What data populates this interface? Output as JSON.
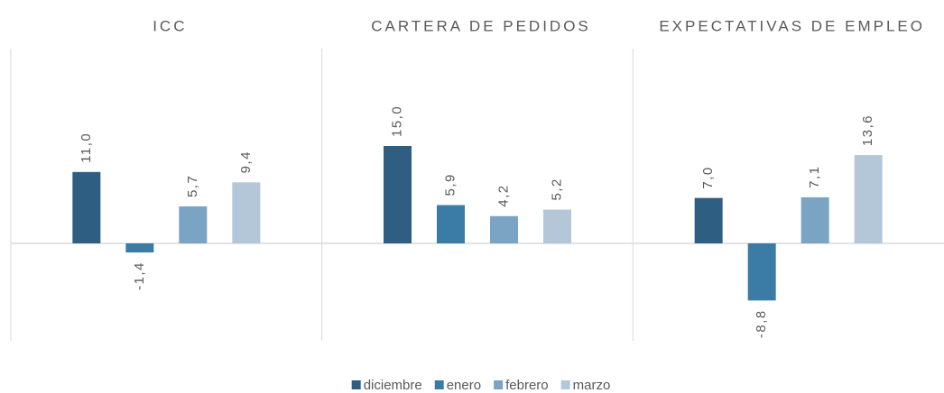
{
  "chart_data": {
    "type": "bar",
    "categories": [
      "ICC",
      "CARTERA DE PEDIDOS",
      "EXPECTATIVAS DE EMPLEO"
    ],
    "series": [
      {
        "name": "diciembre",
        "color": "#2e5f82",
        "values": [
          11.0,
          15.0,
          7.0
        ],
        "value_labels": [
          "11,0",
          "15,0",
          "7,0"
        ]
      },
      {
        "name": "enero",
        "color": "#3a7ca5",
        "values": [
          -1.4,
          5.9,
          -8.8
        ],
        "value_labels": [
          "-1,4",
          "5,9",
          "-8,8"
        ]
      },
      {
        "name": "febrero",
        "color": "#7ba3c4",
        "values": [
          5.7,
          4.2,
          7.1
        ],
        "value_labels": [
          "5,7",
          "4,2",
          "7,1"
        ]
      },
      {
        "name": "marzo",
        "color": "#b3c7d9",
        "values": [
          9.4,
          5.2,
          13.6
        ],
        "value_labels": [
          "9,4",
          "5,2",
          "13,6"
        ]
      }
    ],
    "ylim": [
      -15,
      30
    ]
  }
}
